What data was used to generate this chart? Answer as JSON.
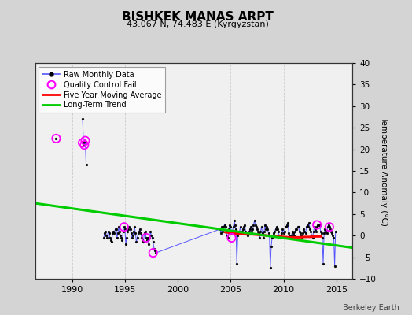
{
  "title": "BISHKEK MANAS ARPT",
  "subtitle": "43.067 N, 74.483 E (Kyrgyzstan)",
  "ylabel_right": "Temperature Anomaly (°C)",
  "footer": "Berkeley Earth",
  "ylim": [
    -10,
    40
  ],
  "xlim": [
    1986.5,
    2016.5
  ],
  "yticks": [
    -10,
    -5,
    0,
    5,
    10,
    15,
    20,
    25,
    30,
    35,
    40
  ],
  "xticks": [
    1990,
    1995,
    2000,
    2005,
    2010,
    2015
  ],
  "bg_color": "#d4d4d4",
  "plot_bg_color": "#f0f0f0",
  "raw_data": {
    "years": [
      1993.0,
      1993.083,
      1993.167,
      1993.25,
      1993.333,
      1993.417,
      1993.5,
      1993.583,
      1993.667,
      1993.75,
      1993.833,
      1993.917,
      1994.0,
      1994.083,
      1994.167,
      1994.25,
      1994.333,
      1994.417,
      1994.5,
      1994.583,
      1994.667,
      1994.75,
      1994.833,
      1994.917,
      1995.0,
      1995.083,
      1995.167,
      1995.25,
      1995.333,
      1995.417,
      1995.5,
      1995.583,
      1995.667,
      1995.75,
      1995.833,
      1995.917,
      1996.0,
      1996.083,
      1996.167,
      1996.25,
      1996.333,
      1996.417,
      1996.5,
      1996.583,
      1996.667,
      1996.75,
      1996.833,
      1996.917,
      1997.0,
      1997.083,
      1997.167,
      1997.25,
      1997.333,
      1997.417,
      1997.5,
      1997.583,
      1997.667,
      1997.75,
      1997.833,
      1997.917,
      2004.0,
      2004.083,
      2004.167,
      2004.25,
      2004.333,
      2004.417,
      2004.5,
      2004.583,
      2004.667,
      2004.75,
      2004.833,
      2004.917,
      2005.0,
      2005.083,
      2005.167,
      2005.25,
      2005.333,
      2005.417,
      2005.5,
      2005.583,
      2005.667,
      2005.75,
      2005.833,
      2005.917,
      2006.0,
      2006.083,
      2006.167,
      2006.25,
      2006.333,
      2006.417,
      2006.5,
      2006.583,
      2006.667,
      2006.75,
      2006.833,
      2006.917,
      2007.0,
      2007.083,
      2007.167,
      2007.25,
      2007.333,
      2007.417,
      2007.5,
      2007.583,
      2007.667,
      2007.75,
      2007.833,
      2007.917,
      2008.0,
      2008.083,
      2008.167,
      2008.25,
      2008.333,
      2008.417,
      2008.5,
      2008.583,
      2008.667,
      2008.75,
      2008.833,
      2008.917,
      2009.0,
      2009.083,
      2009.167,
      2009.25,
      2009.333,
      2009.417,
      2009.5,
      2009.583,
      2009.667,
      2009.75,
      2009.833,
      2009.917,
      2010.0,
      2010.083,
      2010.167,
      2010.25,
      2010.333,
      2010.417,
      2010.5,
      2010.583,
      2010.667,
      2010.75,
      2010.833,
      2010.917,
      2011.0,
      2011.083,
      2011.167,
      2011.25,
      2011.333,
      2011.417,
      2011.5,
      2011.583,
      2011.667,
      2011.75,
      2011.833,
      2011.917,
      2012.0,
      2012.083,
      2012.167,
      2012.25,
      2012.333,
      2012.417,
      2012.5,
      2012.583,
      2012.667,
      2012.75,
      2012.833,
      2012.917,
      2013.0,
      2013.083,
      2013.167,
      2013.25,
      2013.333,
      2013.417,
      2013.5,
      2013.583,
      2013.667,
      2013.75,
      2013.833,
      2013.917,
      2014.0,
      2014.083,
      2014.167,
      2014.25,
      2014.333,
      2014.417,
      2014.5,
      2014.583,
      2014.667,
      2014.75,
      2014.833,
      2014.917
    ],
    "values": [
      -0.5,
      0.5,
      1.0,
      0.0,
      -0.5,
      1.0,
      0.5,
      -0.5,
      -1.0,
      -1.5,
      0.5,
      1.0,
      0.5,
      1.5,
      1.5,
      -0.5,
      0.5,
      2.0,
      1.0,
      0.0,
      -0.5,
      -1.0,
      1.0,
      2.0,
      1.5,
      -2.0,
      -0.5,
      1.0,
      1.5,
      2.0,
      1.5,
      0.5,
      -0.5,
      0.0,
      1.0,
      2.0,
      0.5,
      -1.5,
      -0.5,
      0.5,
      1.0,
      1.5,
      0.5,
      -0.5,
      -1.0,
      -1.5,
      0.5,
      1.0,
      -0.5,
      -1.0,
      -0.5,
      -2.0,
      -0.5,
      1.0,
      0.0,
      -0.5,
      -1.5,
      -3.0,
      -3.5,
      -4.0,
      1.5,
      0.5,
      2.0,
      1.0,
      2.0,
      2.5,
      2.0,
      1.0,
      0.0,
      -0.5,
      1.5,
      2.5,
      2.0,
      0.5,
      1.0,
      2.0,
      3.5,
      2.5,
      1.5,
      -6.5,
      0.0,
      0.5,
      1.0,
      2.0,
      0.5,
      1.0,
      1.5,
      2.0,
      2.5,
      1.0,
      0.5,
      0.0,
      0.5,
      1.0,
      1.5,
      2.0,
      1.0,
      1.5,
      2.5,
      3.5,
      2.5,
      2.0,
      1.5,
      1.0,
      0.5,
      -0.5,
      1.0,
      2.0,
      0.5,
      -0.5,
      1.0,
      2.5,
      1.5,
      2.0,
      1.5,
      0.5,
      0.0,
      -7.5,
      -2.5,
      -0.5,
      0.0,
      0.5,
      1.0,
      1.5,
      2.0,
      1.5,
      1.0,
      0.0,
      -0.5,
      0.0,
      0.5,
      1.5,
      0.5,
      1.0,
      2.0,
      2.0,
      2.5,
      3.0,
      0.5,
      0.0,
      -0.5,
      0.0,
      1.0,
      0.5,
      0.0,
      1.0,
      1.5,
      1.5,
      2.0,
      2.0,
      1.0,
      0.5,
      0.0,
      -0.5,
      0.5,
      1.5,
      1.0,
      0.5,
      2.0,
      2.5,
      2.0,
      3.0,
      1.5,
      1.0,
      0.0,
      -0.5,
      1.0,
      2.0,
      1.5,
      1.0,
      2.0,
      2.5,
      2.5,
      2.5,
      1.0,
      0.5,
      -0.5,
      -6.5,
      0.5,
      1.5,
      1.0,
      0.5,
      2.0,
      2.5,
      2.0,
      1.5,
      1.0,
      0.5,
      0.0,
      -0.5,
      -7.0,
      1.0
    ]
  },
  "spike_segment1": {
    "years": [
      1991.0,
      1991.083,
      1991.167,
      1991.25,
      1991.333
    ],
    "values": [
      27.0,
      21.5,
      21.0,
      22.0,
      16.5
    ]
  },
  "isolated_point": {
    "years": [
      1988.5
    ],
    "values": [
      22.5
    ]
  },
  "qc_fail_points": {
    "years": [
      1988.5,
      1991.0,
      1991.167,
      1991.25,
      1994.917,
      1997.0,
      1997.667,
      2005.083,
      2013.167,
      2014.333
    ],
    "values": [
      22.5,
      21.5,
      21.0,
      22.0,
      2.0,
      -0.5,
      -4.0,
      -0.5,
      2.5,
      2.0
    ]
  },
  "five_year_ma": {
    "years": [
      2004.5,
      2005.0,
      2005.5,
      2006.0,
      2006.5,
      2007.0,
      2007.5,
      2008.0,
      2008.5,
      2009.0,
      2009.5,
      2010.0,
      2010.5,
      2011.0,
      2011.5,
      2012.0,
      2012.5,
      2013.0,
      2013.5
    ],
    "values": [
      0.8,
      0.6,
      0.5,
      0.4,
      0.3,
      0.3,
      0.2,
      0.1,
      0.0,
      -0.1,
      -0.2,
      -0.3,
      -0.4,
      -0.4,
      -0.4,
      -0.3,
      -0.3,
      -0.2,
      -0.2
    ]
  },
  "long_term_trend": {
    "x": [
      1986.5,
      2016.5
    ],
    "y": [
      7.5,
      -2.8
    ]
  },
  "colors": {
    "raw_line": "#5555ff",
    "raw_dot": "#000000",
    "qc_fail": "#ff00ff",
    "five_year_ma": "#ff0000",
    "long_term_trend": "#00cc00"
  }
}
